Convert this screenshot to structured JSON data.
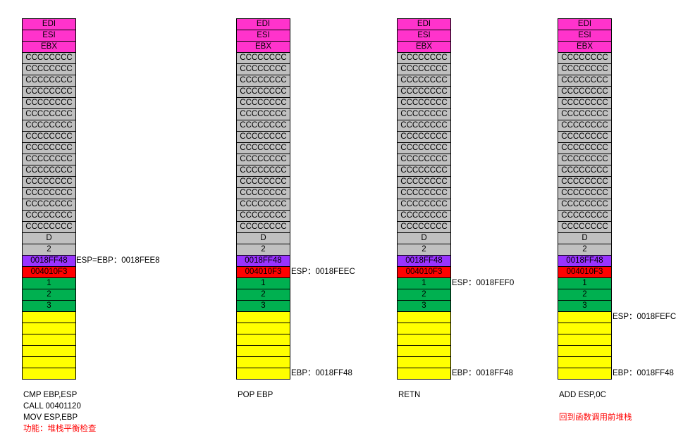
{
  "colors": {
    "saved_reg": "#ff33cc",
    "local_var": "#c0c0c0",
    "old_ebp": "#9933ff",
    "return_address": "#ff0000",
    "argument": "#00b050",
    "empty": "#ffff00",
    "note": "#ff0000"
  },
  "common_cells": {
    "edi": "EDI",
    "esi": "ESI",
    "ebx": "EBX",
    "fill": "CCCCCCCC",
    "d": "D",
    "two": "2",
    "old_ebp": "0018FF48",
    "ret_addr": "004010F3",
    "arg1": "1",
    "arg2": "2",
    "arg3": "3"
  },
  "panels": [
    {
      "pointers": [
        {
          "text": "ESP=EBP：0018FEE8"
        }
      ],
      "commands": [
        "CMP EBP,ESP",
        "CALL 00401120",
        "MOV ESP,EBP"
      ],
      "note": "功能：堆栈平衡检查"
    },
    {
      "pointers": [
        {
          "text": "ESP：0018FEEC"
        },
        {
          "text": "EBP：0018FF48"
        }
      ],
      "commands": [
        "POP EBP"
      ],
      "note": ""
    },
    {
      "pointers": [
        {
          "text": "ESP：0018FEF0"
        },
        {
          "text": "EBP：0018FF48"
        }
      ],
      "commands": [
        "RETN"
      ],
      "note": ""
    },
    {
      "pointers": [
        {
          "text": "ESP：0018FEFC"
        },
        {
          "text": "EBP：0018FF48"
        }
      ],
      "commands": [
        "ADD ESP,0C"
      ],
      "note": "回到函数调用前堆栈"
    }
  ]
}
